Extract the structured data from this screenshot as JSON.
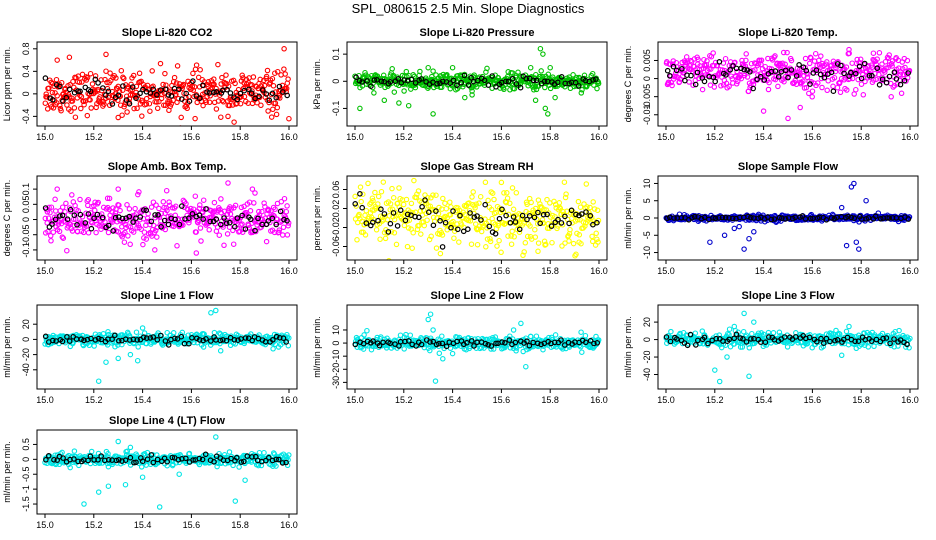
{
  "figure": {
    "title": "SPL_080615  2.5 Min. Slope Diagnostics"
  },
  "chart_data": [
    {
      "type": "scatter",
      "title": "Slope Li-820 CO2",
      "ylabel": "Licor ppm per min.",
      "xlabel": "",
      "x_range": [
        15.0,
        16.0
      ],
      "x_ticks": [
        15.0,
        15.2,
        15.4,
        15.6,
        15.8,
        16.0
      ],
      "ylim": [
        -0.5,
        0.85
      ],
      "y_ticks": [
        -0.4,
        0.0,
        0.4,
        0.8
      ],
      "dense_color": "#ff0000",
      "highlight_color": "#000000",
      "dense_spread": 0.18,
      "dense_center": 0.02,
      "outliers": [
        [
          15.05,
          0.6
        ],
        [
          15.1,
          0.65
        ],
        [
          15.25,
          0.7
        ],
        [
          15.98,
          0.8
        ],
        [
          15.3,
          -0.42
        ],
        [
          15.75,
          -0.4
        ]
      ]
    },
    {
      "type": "scatter",
      "title": "Slope Li-820 Pressure",
      "ylabel": "kPa per min.",
      "xlabel": "",
      "x_range": [
        15.0,
        16.0
      ],
      "x_ticks": [
        15.0,
        15.2,
        15.4,
        15.6,
        15.8,
        16.0
      ],
      "ylim": [
        -0.15,
        0.13
      ],
      "y_ticks": [
        -0.1,
        0.0,
        0.1
      ],
      "dense_color": "#00c000",
      "highlight_color": "#000000",
      "dense_spread": 0.015,
      "dense_center": 0.0,
      "outliers": [
        [
          15.02,
          -0.1
        ],
        [
          15.12,
          -0.07
        ],
        [
          15.18,
          -0.08
        ],
        [
          15.22,
          -0.09
        ],
        [
          15.3,
          0.05
        ],
        [
          15.32,
          -0.12
        ],
        [
          15.35,
          0.02
        ],
        [
          15.4,
          0.05
        ],
        [
          15.45,
          -0.06
        ],
        [
          15.48,
          -0.05
        ],
        [
          15.72,
          0.05
        ],
        [
          15.74,
          -0.07
        ],
        [
          15.76,
          0.12
        ],
        [
          15.77,
          0.1
        ],
        [
          15.78,
          -0.1
        ],
        [
          15.79,
          -0.12
        ],
        [
          15.8,
          0.05
        ],
        [
          15.82,
          -0.06
        ]
      ]
    },
    {
      "type": "scatter",
      "title": "Slope Li-820 Temp.",
      "ylabel": "degrees C per min.",
      "xlabel": "",
      "x_range": [
        15.0,
        16.0
      ],
      "x_ticks": [
        15.0,
        15.2,
        15.4,
        15.6,
        15.8,
        16.0
      ],
      "ylim": [
        -0.012,
        0.009
      ],
      "y_ticks": [
        -0.01,
        -0.005,
        0.0,
        0.005
      ],
      "dense_color": "#ff00ff",
      "highlight_color": "#000000",
      "dense_spread": 0.0025,
      "dense_center": 0.0015,
      "outliers": [
        [
          15.4,
          -0.009
        ],
        [
          15.5,
          -0.011
        ],
        [
          15.55,
          -0.008
        ],
        [
          15.75,
          0.008
        ],
        [
          15.85,
          0.007
        ]
      ]
    },
    {
      "type": "scatter",
      "title": "Slope Amb. Box Temp.",
      "ylabel": "degrees C per min.",
      "xlabel": "",
      "x_range": [
        15.0,
        16.0
      ],
      "x_ticks": [
        15.0,
        15.2,
        15.4,
        15.6,
        15.8,
        16.0
      ],
      "ylim": [
        -0.12,
        0.13
      ],
      "y_ticks": [
        -0.1,
        -0.05,
        0.0,
        0.05,
        0.1
      ],
      "dense_color": "#ff00ff",
      "highlight_color": "#000000",
      "dense_spread": 0.035,
      "dense_center": 0.0,
      "outliers": [
        [
          15.05,
          0.1
        ],
        [
          15.3,
          0.1
        ],
        [
          15.75,
          0.12
        ],
        [
          15.45,
          -0.1
        ],
        [
          15.62,
          -0.11
        ],
        [
          15.85,
          0.1
        ]
      ]
    },
    {
      "type": "scatter",
      "title": "Slope Gas Stream RH",
      "ylabel": "percent per min.",
      "xlabel": "",
      "x_range": [
        15.0,
        16.0
      ],
      "x_ticks": [
        15.0,
        15.2,
        15.4,
        15.6,
        15.8,
        16.0
      ],
      "ylim": [
        -0.08,
        0.08
      ],
      "y_ticks": [
        -0.06,
        -0.02,
        0.02,
        0.06
      ],
      "dense_color": "#ffff00",
      "highlight_color": "#000000",
      "dense_spread": 0.03,
      "dense_center": 0.0,
      "outliers": [
        [
          15.35,
          -0.075
        ],
        [
          15.6,
          0.075
        ],
        [
          15.75,
          -0.07
        ]
      ]
    },
    {
      "type": "scatter",
      "title": "Slope Sample Flow",
      "ylabel": "ml/min per min.",
      "xlabel": "",
      "x_range": [
        15.0,
        16.0
      ],
      "x_ticks": [
        15.0,
        15.2,
        15.4,
        15.6,
        15.8,
        16.0
      ],
      "ylim": [
        -11,
        11
      ],
      "y_ticks": [
        -10,
        -5,
        0,
        5,
        10
      ],
      "dense_color": "#0000cc",
      "highlight_color": "#000000",
      "dense_spread": 0.4,
      "dense_center": 0.0,
      "outliers": [
        [
          15.18,
          -7
        ],
        [
          15.24,
          -5
        ],
        [
          15.28,
          -3
        ],
        [
          15.3,
          -2.5
        ],
        [
          15.32,
          -9
        ],
        [
          15.34,
          -6
        ],
        [
          15.36,
          -4
        ],
        [
          15.72,
          3
        ],
        [
          15.74,
          -8
        ],
        [
          15.76,
          9
        ],
        [
          15.77,
          10
        ],
        [
          15.78,
          -7
        ],
        [
          15.79,
          -9
        ],
        [
          15.82,
          5
        ]
      ]
    },
    {
      "type": "scatter",
      "title": "Slope Line 1 Flow",
      "ylabel": "ml/min per min.",
      "xlabel": "",
      "x_range": [
        15.0,
        16.0
      ],
      "x_ticks": [
        15.0,
        15.2,
        15.4,
        15.6,
        15.8,
        16.0
      ],
      "ylim": [
        -60,
        40
      ],
      "y_ticks": [
        -40,
        -20,
        0,
        20
      ],
      "dense_color": "#00e5e5",
      "highlight_color": "#000000",
      "dense_spread": 4,
      "dense_center": 0.0,
      "outliers": [
        [
          15.22,
          -55
        ],
        [
          15.25,
          -30
        ],
        [
          15.3,
          -25
        ],
        [
          15.35,
          -20
        ],
        [
          15.38,
          -28
        ],
        [
          15.4,
          15
        ],
        [
          15.65,
          -10
        ],
        [
          15.68,
          35
        ],
        [
          15.7,
          38
        ],
        [
          15.72,
          -15
        ]
      ]
    },
    {
      "type": "scatter",
      "title": "Slope Line 2 Flow",
      "ylabel": "ml/min per min.",
      "xlabel": "",
      "x_range": [
        15.0,
        16.0
      ],
      "x_ticks": [
        15.0,
        15.2,
        15.4,
        15.6,
        15.8,
        16.0
      ],
      "ylim": [
        -32,
        26
      ],
      "y_ticks": [
        -30,
        -20,
        -10,
        0,
        10
      ],
      "dense_color": "#00e5e5",
      "highlight_color": "#000000",
      "dense_spread": 2.5,
      "dense_center": 0.0,
      "outliers": [
        [
          15.3,
          18
        ],
        [
          15.31,
          22
        ],
        [
          15.32,
          10
        ],
        [
          15.33,
          -29
        ],
        [
          15.36,
          -12
        ],
        [
          15.4,
          -8
        ],
        [
          15.65,
          10
        ],
        [
          15.68,
          15
        ],
        [
          15.7,
          -18
        ],
        [
          15.72,
          5
        ]
      ]
    },
    {
      "type": "scatter",
      "title": "Slope Line 3 Flow",
      "ylabel": "ml/min per min.",
      "xlabel": "",
      "x_range": [
        15.0,
        16.0
      ],
      "x_ticks": [
        15.0,
        15.2,
        15.4,
        15.6,
        15.8,
        16.0
      ],
      "ylim": [
        -52,
        35
      ],
      "y_ticks": [
        -40,
        -20,
        0,
        20
      ],
      "dense_color": "#00e5e5",
      "highlight_color": "#000000",
      "dense_spread": 4,
      "dense_center": 0.0,
      "outliers": [
        [
          15.2,
          -35
        ],
        [
          15.22,
          -48
        ],
        [
          15.25,
          -20
        ],
        [
          15.28,
          15
        ],
        [
          15.32,
          30
        ],
        [
          15.34,
          -42
        ],
        [
          15.36,
          20
        ],
        [
          15.72,
          -18
        ],
        [
          15.75,
          15
        ],
        [
          15.78,
          -10
        ]
      ]
    },
    {
      "type": "scatter",
      "title": "Slope Line 4 (LT) Flow",
      "ylabel": "ml/min per min.",
      "xlabel": "",
      "x_range": [
        15.0,
        16.0
      ],
      "x_ticks": [
        15.0,
        15.2,
        15.4,
        15.6,
        15.8,
        16.0
      ],
      "ylim": [
        -1.7,
        0.85
      ],
      "y_ticks": [
        -1.5,
        -1.0,
        -0.5,
        0.0,
        0.5
      ],
      "dense_color": "#00e5e5",
      "highlight_color": "#000000",
      "dense_spread": 0.1,
      "dense_center": 0.0,
      "outliers": [
        [
          15.16,
          -1.5
        ],
        [
          15.22,
          -1.1
        ],
        [
          15.26,
          -0.9
        ],
        [
          15.3,
          0.6
        ],
        [
          15.33,
          -0.85
        ],
        [
          15.35,
          0.4
        ],
        [
          15.4,
          -0.6
        ],
        [
          15.47,
          -1.6
        ],
        [
          15.55,
          -0.5
        ],
        [
          15.7,
          0.75
        ],
        [
          15.78,
          -1.4
        ],
        [
          15.82,
          -0.7
        ]
      ]
    }
  ]
}
